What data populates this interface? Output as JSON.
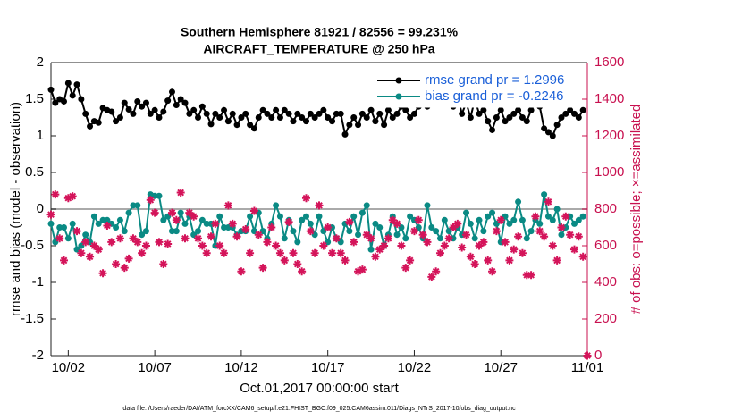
{
  "chart_data": {
    "type": "line",
    "title": "Southern Hemisphere 81921 / 82556 = 99.231%",
    "subtitle": "AIRCRAFT_TEMPERATURE @ 250 hPa",
    "xlabel": "Oct.01,2017 00:00:00 start",
    "ylabel": "rmse and bias (model - observation)",
    "y2label": "# of obs: o=possible; ×=assimilated",
    "footnote": "data file: /Users/raeder/DAI/ATM_forcXX/CAM6_setup/f.e21.FHIST_BGC.f09_025.CAM6assim.011/Diags_NTrS_2017-10/obs_diag_output.nc",
    "xlim": [
      0,
      31
    ],
    "xticks": [
      {
        "value": 1,
        "label": "10/02"
      },
      {
        "value": 6,
        "label": "10/07"
      },
      {
        "value": 11,
        "label": "10/12"
      },
      {
        "value": 16,
        "label": "10/17"
      },
      {
        "value": 21,
        "label": "10/22"
      },
      {
        "value": 26,
        "label": "10/27"
      },
      {
        "value": 31,
        "label": "11/01"
      }
    ],
    "ylim": [
      -2,
      2
    ],
    "yticks": [
      -2,
      -1.5,
      -1,
      -0.5,
      0,
      0.5,
      1,
      1.5,
      2
    ],
    "y2lim": [
      0,
      1600
    ],
    "y2ticks": [
      0,
      200,
      400,
      600,
      800,
      1000,
      1200,
      1400,
      1600
    ],
    "reference_line": 0,
    "legend": "upper right",
    "x": [
      0,
      0.25,
      0.5,
      0.75,
      1,
      1.25,
      1.5,
      1.75,
      2,
      2.25,
      2.5,
      2.75,
      3,
      3.25,
      3.5,
      3.75,
      4,
      4.25,
      4.5,
      4.75,
      5,
      5.25,
      5.5,
      5.75,
      6,
      6.25,
      6.5,
      6.75,
      7,
      7.25,
      7.5,
      7.75,
      8,
      8.25,
      8.5,
      8.75,
      9,
      9.25,
      9.5,
      9.75,
      10,
      10.25,
      10.5,
      10.75,
      11,
      11.25,
      11.5,
      11.75,
      12,
      12.25,
      12.5,
      12.75,
      13,
      13.25,
      13.5,
      13.75,
      14,
      14.25,
      14.5,
      14.75,
      15,
      15.25,
      15.5,
      15.75,
      16,
      16.25,
      16.5,
      16.75,
      17,
      17.25,
      17.5,
      17.75,
      18,
      18.25,
      18.5,
      18.75,
      19,
      19.25,
      19.5,
      19.75,
      20,
      20.25,
      20.5,
      20.75,
      21,
      21.25,
      21.5,
      21.75,
      22,
      22.25,
      22.5,
      22.75,
      23,
      23.25,
      23.5,
      23.75,
      24,
      24.25,
      24.5,
      24.75,
      25,
      25.25,
      25.5,
      25.75,
      26,
      26.25,
      26.5,
      26.75,
      27,
      27.25,
      27.5,
      27.75,
      28,
      28.25,
      28.5,
      28.75,
      29,
      29.25,
      29.5,
      29.75,
      30,
      30.25,
      30.5,
      30.75,
      31
    ],
    "series": [
      {
        "name": "rmse grand pr = 1.2996",
        "color": "#000000",
        "marker": "circle",
        "values": [
          1.63,
          1.45,
          1.5,
          1.47,
          1.72,
          1.55,
          1.7,
          1.5,
          1.3,
          1.13,
          1.2,
          1.18,
          1.38,
          1.35,
          1.33,
          1.2,
          1.25,
          1.45,
          1.36,
          1.3,
          1.47,
          1.4,
          1.45,
          1.3,
          1.35,
          1.25,
          1.33,
          1.48,
          1.6,
          1.42,
          1.5,
          1.45,
          1.3,
          1.35,
          1.25,
          1.4,
          1.3,
          1.16,
          1.3,
          1.25,
          1.35,
          1.2,
          1.3,
          1.15,
          1.25,
          1.3,
          1.15,
          1.1,
          1.25,
          1.35,
          1.3,
          1.25,
          1.35,
          1.25,
          1.35,
          1.3,
          1.2,
          1.3,
          1.25,
          1.2,
          1.3,
          1.25,
          1.3,
          1.35,
          1.25,
          1.2,
          1.3,
          1.3,
          1.02,
          1.15,
          1.25,
          1.15,
          1.3,
          1.25,
          1.35,
          1.2,
          1.3,
          1.15,
          1.35,
          1.25,
          1.3,
          1.4,
          1.35,
          1.25,
          1.3,
          1.4,
          1.45,
          1.4,
          1.5,
          1.45,
          1.55,
          1.62,
          1.5,
          1.4,
          1.55,
          1.3,
          1.45,
          1.25,
          1.5,
          1.3,
          1.35,
          1.2,
          1.08,
          1.25,
          1.35,
          1.2,
          1.25,
          1.3,
          1.35,
          1.25,
          1.2,
          1.35,
          1.45,
          1.4,
          1.1,
          1.05,
          1.0,
          1.15,
          1.25,
          1.3,
          1.35,
          1.3,
          1.25,
          1.35,
          null
        ]
      },
      {
        "name": "bias grand pr = -0.2246",
        "color": "#0a8a84",
        "marker": "circle",
        "values": [
          -0.2,
          -0.45,
          -0.25,
          -0.25,
          -0.4,
          -0.2,
          -0.55,
          -0.5,
          -0.35,
          -0.45,
          -0.1,
          -0.2,
          -0.15,
          -0.15,
          -0.2,
          -0.25,
          -0.15,
          -0.3,
          -0.05,
          0.05,
          0.05,
          -0.35,
          -0.3,
          0.2,
          0.18,
          0.18,
          -0.15,
          -0.1,
          -0.3,
          -0.3,
          -0.05,
          -0.2,
          -0.1,
          -0.35,
          -0.3,
          -0.15,
          -0.2,
          -0.2,
          -0.5,
          -0.1,
          -0.25,
          -0.25,
          -0.25,
          -0.35,
          -0.3,
          -0.3,
          -0.1,
          -0.3,
          -0.05,
          -0.3,
          -0.4,
          -0.2,
          0.05,
          -0.1,
          -0.4,
          -0.15,
          -0.3,
          -0.45,
          -0.15,
          -0.1,
          -0.2,
          -0.35,
          -0.1,
          -0.3,
          -0.45,
          -0.25,
          -0.4,
          -0.45,
          -0.2,
          -0.3,
          -0.1,
          -0.35,
          -0.05,
          0.05,
          -0.55,
          -0.2,
          -0.25,
          -0.5,
          -0.35,
          -0.1,
          -0.35,
          -0.25,
          -0.4,
          -0.1,
          -0.15,
          -0.25,
          -0.4,
          0.05,
          -0.25,
          -0.3,
          -0.4,
          -0.15,
          -0.3,
          -0.4,
          -0.25,
          -0.35,
          -0.05,
          -0.2,
          -0.4,
          -0.15,
          -0.3,
          -0.1,
          -0.05,
          -0.2,
          -0.45,
          -0.1,
          -0.2,
          -0.15,
          0.1,
          -0.15,
          -0.4,
          -0.3,
          -0.15,
          -0.2,
          0.2,
          -0.1,
          -0.15,
          0.0,
          -0.35,
          -0.25,
          -0.1,
          -0.2,
          -0.15,
          -0.1,
          null
        ]
      },
      {
        "color": "#d4145a",
        "marker": "star",
        "axis": "y2",
        "values": [
          770,
          880,
          640,
          520,
          860,
          870,
          680,
          560,
          620,
          540,
          600,
          580,
          450,
          710,
          620,
          500,
          640,
          480,
          530,
          640,
          620,
          560,
          600,
          850,
          780,
          620,
          500,
          610,
          780,
          740,
          890,
          640,
          780,
          760,
          640,
          600,
          560,
          650,
          720,
          600,
          560,
          820,
          720,
          650,
          460,
          690,
          560,
          790,
          660,
          480,
          620,
          700,
          600,
          560,
          520,
          730,
          560,
          500,
          460,
          860,
          680,
          560,
          820,
          600,
          700,
          560,
          640,
          560,
          520,
          730,
          620,
          460,
          470,
          660,
          640,
          540,
          580,
          600,
          640,
          740,
          720,
          600,
          480,
          520,
          680,
          740,
          660,
          620,
          430,
          460,
          560,
          600,
          640,
          700,
          720,
          590,
          660,
          540,
          500,
          600,
          620,
          520,
          460,
          680,
          740,
          620,
          520,
          580,
          650,
          560,
          440,
          440,
          760,
          680,
          650,
          840,
          600,
          520,
          700,
          760,
          660,
          580,
          650,
          540,
          0
        ]
      }
    ]
  }
}
